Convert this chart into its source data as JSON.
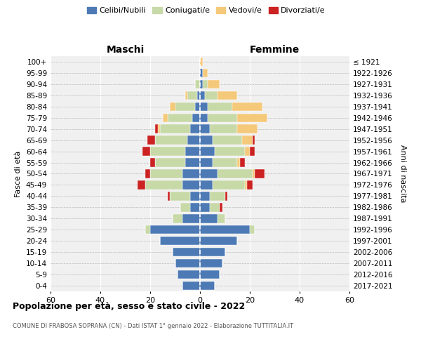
{
  "age_groups": [
    "0-4",
    "5-9",
    "10-14",
    "15-19",
    "20-24",
    "25-29",
    "30-34",
    "35-39",
    "40-44",
    "45-49",
    "50-54",
    "55-59",
    "60-64",
    "65-69",
    "70-74",
    "75-79",
    "80-84",
    "85-89",
    "90-94",
    "95-99",
    "100+"
  ],
  "birth_years": [
    "2017-2021",
    "2012-2016",
    "2007-2011",
    "2002-2006",
    "1997-2001",
    "1992-1996",
    "1987-1991",
    "1982-1986",
    "1977-1981",
    "1972-1976",
    "1967-1971",
    "1962-1966",
    "1957-1961",
    "1952-1956",
    "1947-1951",
    "1942-1946",
    "1937-1941",
    "1932-1936",
    "1927-1931",
    "1922-1926",
    "≤ 1921"
  ],
  "colors": {
    "celibi": "#4d7ab5",
    "coniugati": "#c8d9a8",
    "vedovi": "#f5c97a",
    "divorziati": "#cc2222"
  },
  "maschi": {
    "celibi": [
      7,
      9,
      10,
      11,
      16,
      20,
      7,
      4,
      4,
      7,
      7,
      6,
      6,
      5,
      4,
      3,
      2,
      1,
      0,
      0,
      0
    ],
    "coniugati": [
      0,
      0,
      0,
      0,
      0,
      2,
      4,
      4,
      8,
      15,
      13,
      12,
      14,
      13,
      12,
      10,
      8,
      4,
      2,
      0,
      0
    ],
    "vedovi": [
      0,
      0,
      0,
      0,
      0,
      0,
      0,
      0,
      0,
      0,
      0,
      0,
      0,
      0,
      1,
      2,
      2,
      1,
      0,
      0,
      0
    ],
    "divorziati": [
      0,
      0,
      0,
      0,
      0,
      0,
      0,
      0,
      1,
      3,
      2,
      2,
      3,
      3,
      1,
      0,
      0,
      0,
      0,
      0,
      0
    ]
  },
  "femmine": {
    "celibi": [
      6,
      8,
      9,
      10,
      15,
      20,
      7,
      4,
      4,
      5,
      7,
      5,
      6,
      5,
      4,
      3,
      3,
      2,
      1,
      1,
      0
    ],
    "coniugati": [
      0,
      0,
      0,
      0,
      0,
      2,
      3,
      4,
      6,
      13,
      14,
      10,
      12,
      12,
      11,
      12,
      10,
      5,
      2,
      0,
      0
    ],
    "vedovi": [
      0,
      0,
      0,
      0,
      0,
      0,
      0,
      0,
      0,
      1,
      1,
      1,
      2,
      4,
      8,
      12,
      12,
      8,
      5,
      2,
      1
    ],
    "divorziati": [
      0,
      0,
      0,
      0,
      0,
      0,
      0,
      1,
      1,
      2,
      4,
      2,
      2,
      1,
      0,
      0,
      0,
      0,
      0,
      0,
      0
    ]
  },
  "xlim": 60,
  "title": "Popolazione per età, sesso e stato civile - 2022",
  "subtitle": "COMUNE DI FRABOSA SOPRANA (CN) - Dati ISTAT 1° gennaio 2022 - Elaborazione TUTTITALIA.IT",
  "ylabel_left": "Fasce di età",
  "ylabel_right": "Anni di nascita",
  "xlabel_left": "Maschi",
  "xlabel_right": "Femmine",
  "legend_labels": [
    "Celibi/Nubili",
    "Coniugati/e",
    "Vedovi/e",
    "Divorziati/e"
  ],
  "bg_color": "#ffffff",
  "plot_bg": "#f0f0f0"
}
